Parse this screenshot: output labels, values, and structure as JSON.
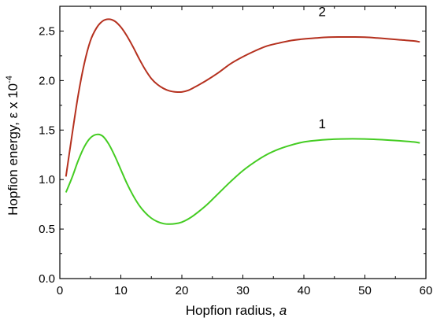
{
  "chart_data": {
    "type": "line",
    "title": "",
    "xlabel": "Hopfion radius, a",
    "xlabel_prefix": "Hopfion radius, ",
    "xlabel_var": "a",
    "ylabel": "Hopfion energy, ε x 10⁻⁴",
    "ylabel_main": "Hopfion energy, ε x 10",
    "ylabel_exp": "-4",
    "xlim": [
      0,
      60
    ],
    "ylim": [
      0.0,
      2.75
    ],
    "xticks": [
      0,
      10,
      20,
      30,
      40,
      50,
      60
    ],
    "yticks": [
      0.0,
      0.5,
      1.0,
      1.5,
      2.0,
      2.5
    ],
    "xtick_labels": [
      "0",
      "10",
      "20",
      "30",
      "40",
      "50",
      "60"
    ],
    "ytick_labels": [
      "0.0",
      "0.5",
      "1.0",
      "1.5",
      "2.0",
      "2.5"
    ],
    "grid": false,
    "legend": "none",
    "series": [
      {
        "name": "2",
        "color": "#b5311f",
        "label_at": [
          43,
          2.65
        ],
        "x": [
          1,
          2,
          3,
          4,
          5,
          6,
          7,
          8,
          9,
          10,
          11,
          12,
          13,
          14,
          15,
          16,
          17,
          18,
          19,
          20,
          21,
          22,
          24,
          26,
          28,
          30,
          32,
          34,
          36,
          38,
          40,
          42,
          44,
          46,
          48,
          50,
          52,
          54,
          56,
          58,
          59
        ],
        "y": [
          1.03,
          1.45,
          1.85,
          2.17,
          2.4,
          2.53,
          2.6,
          2.62,
          2.6,
          2.54,
          2.45,
          2.34,
          2.22,
          2.11,
          2.02,
          1.96,
          1.92,
          1.895,
          1.885,
          1.885,
          1.9,
          1.93,
          2.0,
          2.08,
          2.17,
          2.24,
          2.3,
          2.35,
          2.38,
          2.405,
          2.42,
          2.43,
          2.438,
          2.44,
          2.44,
          2.438,
          2.43,
          2.42,
          2.41,
          2.4,
          2.39
        ]
      },
      {
        "name": "1",
        "color": "#44cc22",
        "label_at": [
          43,
          1.52
        ],
        "x": [
          1,
          2,
          3,
          4,
          5,
          6,
          7,
          8,
          9,
          10,
          11,
          12,
          13,
          14,
          15,
          16,
          17,
          18,
          19,
          20,
          21,
          22,
          24,
          26,
          28,
          30,
          32,
          34,
          36,
          38,
          40,
          42,
          44,
          46,
          48,
          50,
          52,
          54,
          56,
          58,
          59
        ],
        "y": [
          0.87,
          1.02,
          1.19,
          1.33,
          1.42,
          1.455,
          1.44,
          1.36,
          1.24,
          1.1,
          0.96,
          0.84,
          0.74,
          0.665,
          0.61,
          0.575,
          0.555,
          0.55,
          0.555,
          0.57,
          0.6,
          0.64,
          0.74,
          0.86,
          0.98,
          1.09,
          1.18,
          1.255,
          1.31,
          1.35,
          1.38,
          1.395,
          1.405,
          1.41,
          1.412,
          1.41,
          1.405,
          1.398,
          1.39,
          1.38,
          1.37
        ]
      }
    ]
  }
}
